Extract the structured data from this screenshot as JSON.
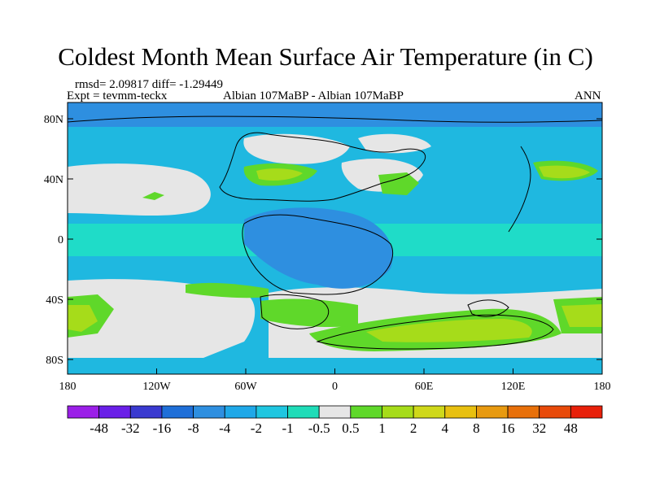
{
  "title": "Coldest Month Mean Surface Air Temperature (in C)",
  "stats": "rmsd= 2.09817  diff= -1.29449",
  "experiment": "Expt = tevmm-teckx",
  "comparison": "Albian   107MaBP - Albian   107MaBP",
  "season": "ANN",
  "map": {
    "projection": "cylindrical-equidistant",
    "lon_range": [
      -180,
      180
    ],
    "lat_range": [
      -90,
      90
    ],
    "lat_ticks": [
      "80N",
      "40N",
      "0",
      "40S",
      "80S"
    ],
    "lon_ticks": [
      "180",
      "120W",
      "60W",
      "0",
      "60E",
      "120E",
      "180"
    ]
  },
  "colorbar": {
    "labels": [
      "-48",
      "-32",
      "-16",
      "-8",
      "-4",
      "-2",
      "-1",
      "-0.5",
      "0.5",
      "1",
      "2",
      "4",
      "8",
      "16",
      "32",
      "48"
    ],
    "colors": [
      "#9b1fe8",
      "#6a1fe8",
      "#3a3ad0",
      "#1f6fd8",
      "#2e8fe0",
      "#1fa8e8",
      "#1fc6e0",
      "#1fdcb8",
      "#e6e6e6",
      "#5fd82a",
      "#a6dc1a",
      "#cfd81a",
      "#e8c010",
      "#e89a10",
      "#e8700a",
      "#e84a0a",
      "#e8200a"
    ]
  },
  "colors": {
    "ocean": "#1fb8e0",
    "neg_mid": "#2e8fe0",
    "neg_light": "#1fdcc8",
    "neutral": "#e6e6e6",
    "pos_small": "#5fd82a",
    "pos_mid": "#a6dc1a",
    "pos_large": "#cfd81a"
  }
}
